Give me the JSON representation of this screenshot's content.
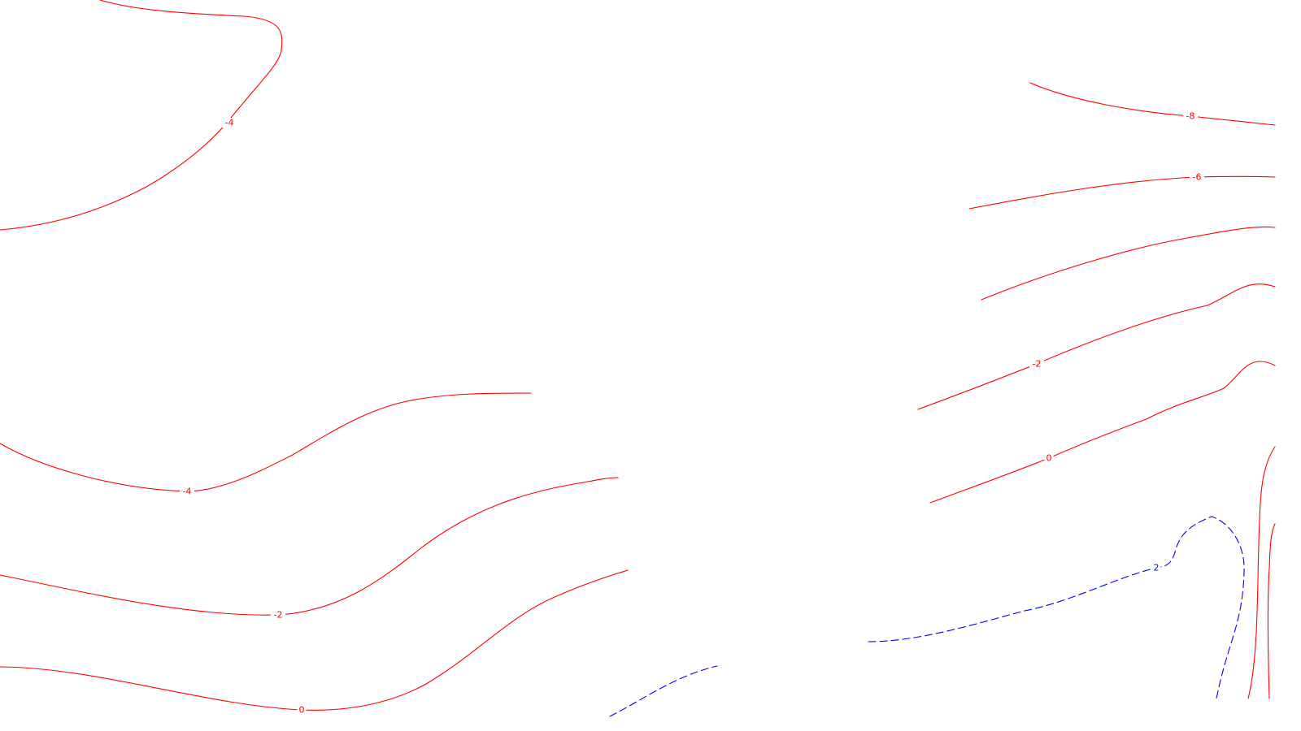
{
  "colors": {
    "background": "#ffffff",
    "negative_contour": "#ff0000",
    "positive_contour": "#0000ff"
  },
  "contours": [
    {
      "id": "c-top-left",
      "value": -4,
      "label": "-4",
      "color": "#ff0000",
      "style": "solid"
    },
    {
      "id": "c-right-top-8",
      "value": -8,
      "label": "-8",
      "color": "#ff0000",
      "style": "solid"
    },
    {
      "id": "c-right-6",
      "value": -6,
      "label": "-6",
      "color": "#ff0000",
      "style": "solid"
    },
    {
      "id": "c-right-unlabeled",
      "value": -4,
      "label": "",
      "color": "#ff0000",
      "style": "solid"
    },
    {
      "id": "c-right-2",
      "value": -2,
      "label": "-2",
      "color": "#ff0000",
      "style": "solid"
    },
    {
      "id": "c-right-0",
      "value": 0,
      "label": "0",
      "color": "#ff0000",
      "style": "solid"
    },
    {
      "id": "c-left-4",
      "value": -4,
      "label": "-4",
      "color": "#ff0000",
      "style": "solid"
    },
    {
      "id": "c-left-2",
      "value": -2,
      "label": "-2",
      "color": "#ff0000",
      "style": "solid"
    },
    {
      "id": "c-left-0",
      "value": 0,
      "label": "0",
      "color": "#ff0000",
      "style": "solid"
    },
    {
      "id": "c-right-edge-a",
      "value": 0,
      "label": "",
      "color": "#ff0000",
      "style": "solid"
    },
    {
      "id": "c-right-edge-b",
      "value": 0,
      "label": "",
      "color": "#ff0000",
      "style": "solid"
    },
    {
      "id": "c-pos-2",
      "value": 2,
      "label": "2",
      "color": "#0000ff",
      "style": "dashed"
    },
    {
      "id": "c-pos-bottom",
      "value": 2,
      "label": "",
      "color": "#0000ff",
      "style": "dashed"
    }
  ]
}
